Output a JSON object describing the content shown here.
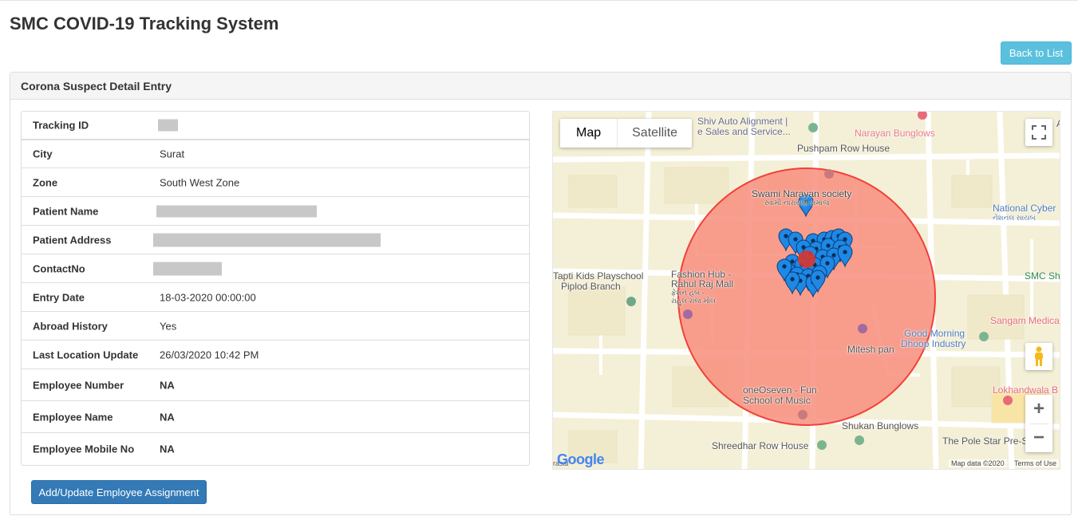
{
  "header": {
    "title": "SMC COVID-19 Tracking System",
    "back_label": "Back to List"
  },
  "panel": {
    "title": "Corona Suspect Detail Entry"
  },
  "details": [
    {
      "label": "Tracking ID",
      "value": ""
    },
    {
      "label": "City",
      "value": "Surat"
    },
    {
      "label": "Zone",
      "value": "South West Zone"
    },
    {
      "label": "Patient Name",
      "value": ""
    },
    {
      "label": "Patient Address",
      "value": ""
    },
    {
      "label": "ContactNo",
      "value": ""
    },
    {
      "label": "Entry Date",
      "value": "18-03-2020 00:00:00"
    },
    {
      "label": "Abroad History",
      "value": "Yes"
    },
    {
      "label": "Last Location Update",
      "value": "26/03/2020 10:42 PM"
    },
    {
      "label": "Employee Number",
      "value": "NA"
    },
    {
      "label": "Employee Name",
      "value": "NA"
    },
    {
      "label": "Employee Mobile No",
      "value": "NA"
    }
  ],
  "assign_button": "Add/Update Employee Assignment",
  "map": {
    "type_map": "Map",
    "type_satellite": "Satellite",
    "zoom_in": "+",
    "zoom_out": "−",
    "logo": "Google",
    "map_data": "Map data ©2020",
    "terms": "Terms of Use",
    "labels": {
      "shiv": "Shiv Auto Alignment |",
      "shiv2": "e Sales and Service...",
      "narayan": "Narayan Bunglows",
      "pushpam": "Pushpam Row House",
      "swami": "Swami Narayan society",
      "swami_guj": "સ્વામી નારાયણ સમાજ",
      "national": "National Cyber",
      "national_guj": "નેશનલ સાયબ",
      "tapti": "Tapti Kids Playschool",
      "piplod": "Piplod Branch",
      "fashion": "Fashion Hub -",
      "rahul": "Rahul Raj Mall",
      "fashion_guj": "ફેશન હબ -",
      "rahul_guj": "રાહુલ રાજ મોલ",
      "smc": "SMC Sha",
      "sangam": "Sangam Medica",
      "goodmorning": "Good Morning",
      "dhoop": "Dhoop Industry",
      "mitesh": "Mitesh pan",
      "oneoseven": "oneOseven - Fun",
      "school": "School of Music",
      "lokhandwala": "Lokhandwala B",
      "shukan": "Shukan Bunglows",
      "shreedhar": "Shreedhar Row House",
      "polestar": "The Pole Star Pre-S",
      "edge_a": "A",
      "edge_rasai": "rasai"
    }
  },
  "colors": {
    "info": "#5bc0de",
    "primary": "#337ab7",
    "circle_fill": "#f88e7e",
    "circle_stroke": "#f2403a",
    "marker": "#1e88e5"
  },
  "icons": {
    "fullscreen": "fullscreen-icon",
    "pegman": "pegman-icon",
    "marker": "map-marker-icon"
  }
}
